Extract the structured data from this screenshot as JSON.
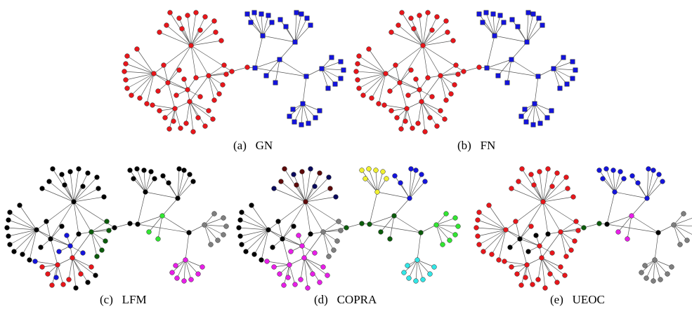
{
  "captions": {
    "a": "(a)   GN",
    "b": "(b)   FN",
    "c": "(c)   LFM",
    "d": "(d)   COPRA",
    "e": "(e)   UEOC"
  },
  "panels": [
    {
      "id": "a",
      "method": "GN",
      "communities": 2,
      "colors": {
        "left": "#e8161b",
        "right": "#1414dc"
      },
      "right_shape": "square"
    },
    {
      "id": "b",
      "method": "FN",
      "communities": 2,
      "colors": {
        "left": "#e8161b",
        "right": "#1414dc"
      },
      "right_shape": "square"
    },
    {
      "id": "c",
      "method": "LFM",
      "colors": [
        "#000000",
        "#e8161b",
        "#0c5c0c",
        "#1414dc",
        "#e81ee8",
        "#7f7f7f",
        "#32e632"
      ]
    },
    {
      "id": "d",
      "method": "COPRA",
      "colors": [
        "#000000",
        "#5c0a0a",
        "#0a0a5c",
        "#7f7f7f",
        "#e81ee8",
        "#0c5c0c",
        "#f0f032",
        "#1414dc",
        "#32e632",
        "#32e6e6"
      ]
    },
    {
      "id": "e",
      "method": "UEOC",
      "colors": [
        "#e8161b",
        "#000000",
        "#1414dc",
        "#7f7f7f",
        "#e81ee8",
        "#0c5c0c"
      ]
    }
  ]
}
